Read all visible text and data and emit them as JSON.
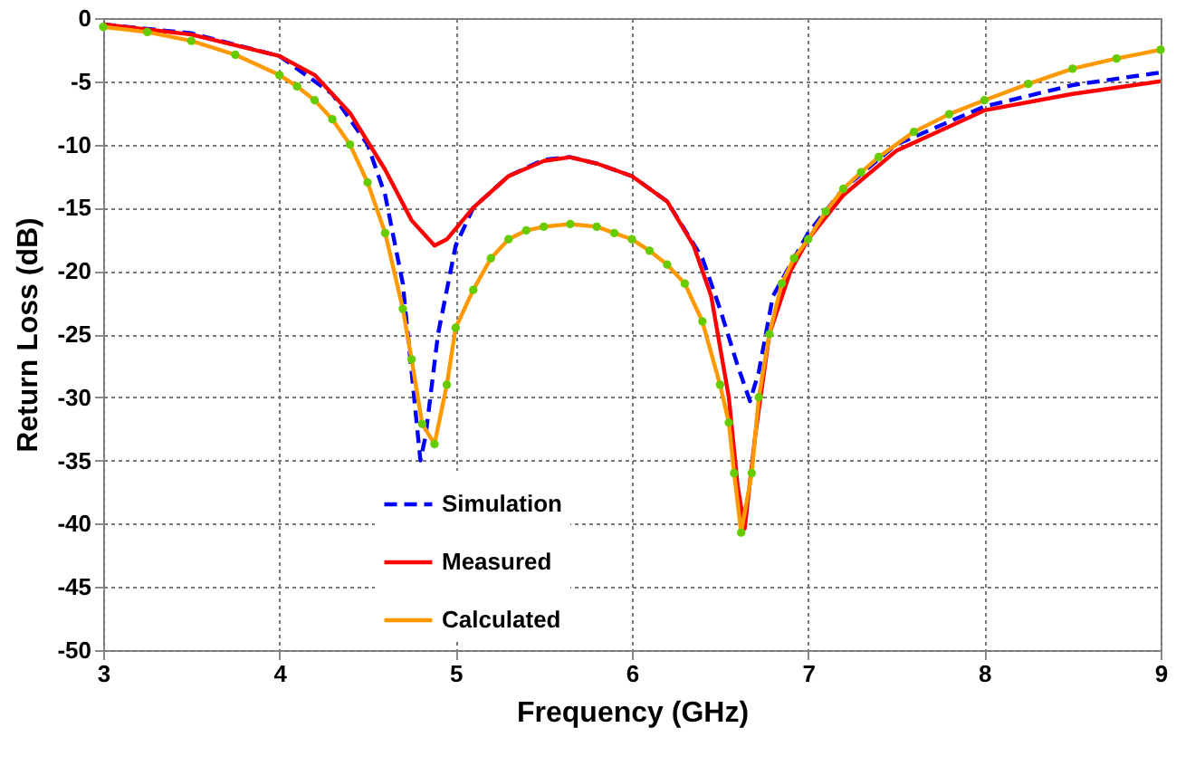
{
  "chart_data": {
    "type": "line",
    "xlabel": "Frequency (GHz)",
    "ylabel": "Return Loss (dB)",
    "xlim": [
      3,
      9
    ],
    "xticks": [
      3,
      4,
      5,
      6,
      7,
      8,
      9
    ],
    "ylim": [
      -50,
      0
    ],
    "yticks": [
      -50,
      -45,
      -40,
      -35,
      -30,
      -25,
      -20,
      -15,
      -10,
      -5,
      0
    ],
    "grid": true,
    "legend": "bottom",
    "series": [
      {
        "name": "Simulation",
        "color": "#0000ff",
        "line_style": "dashed",
        "x": [
          3,
          3.5,
          4,
          4.3,
          4.5,
          4.6,
          4.7,
          4.75,
          4.8,
          4.83,
          4.9,
          5,
          5.1,
          5.3,
          5.5,
          5.65,
          5.8,
          6,
          6.2,
          6.4,
          6.5,
          6.6,
          6.67,
          6.72,
          6.8,
          7,
          7.2,
          7.5,
          8,
          8.5,
          9
        ],
        "values": [
          -0.5,
          -1.2,
          -3,
          -6,
          -10,
          -14,
          -21,
          -28,
          -35,
          -33,
          -25,
          -18,
          -15,
          -12.5,
          -11.2,
          -11,
          -11.5,
          -12.5,
          -14.5,
          -19,
          -23,
          -27.5,
          -30.3,
          -28,
          -22,
          -17,
          -13.5,
          -10,
          -7,
          -5.3,
          -4.3
        ]
      },
      {
        "name": "Measured",
        "color": "#ff0000",
        "line_style": "solid",
        "x": [
          3,
          3.5,
          4,
          4.2,
          4.4,
          4.6,
          4.75,
          4.88,
          4.95,
          5.1,
          5.3,
          5.5,
          5.65,
          5.8,
          6,
          6.2,
          6.35,
          6.45,
          6.55,
          6.6,
          6.64,
          6.7,
          6.78,
          6.9,
          7,
          7.2,
          7.5,
          8,
          8.5,
          9
        ],
        "values": [
          -0.5,
          -1.3,
          -3,
          -4.5,
          -7.5,
          -12,
          -16,
          -18,
          -17.5,
          -15,
          -12.5,
          -11.3,
          -11,
          -11.5,
          -12.5,
          -14.5,
          -18,
          -22,
          -30,
          -37,
          -40.4,
          -33,
          -25,
          -20,
          -17.5,
          -14,
          -10.5,
          -7.3,
          -6,
          -5
        ]
      },
      {
        "name": "Calculated",
        "color": "#ff9900",
        "line_style": "solid",
        "marker": "circle",
        "x": [
          3,
          3.25,
          3.5,
          3.75,
          4,
          4.1,
          4.2,
          4.3,
          4.4,
          4.5,
          4.6,
          4.7,
          4.75,
          4.81,
          4.88,
          4.95,
          5,
          5.1,
          5.2,
          5.3,
          5.4,
          5.5,
          5.65,
          5.8,
          5.9,
          6,
          6.1,
          6.2,
          6.3,
          6.4,
          6.5,
          6.55,
          6.58,
          6.62,
          6.68,
          6.72,
          6.78,
          6.85,
          6.92,
          7,
          7.1,
          7.2,
          7.3,
          7.4,
          7.6,
          7.8,
          8,
          8.25,
          8.5,
          8.75,
          9
        ],
        "values": [
          -0.7,
          -1.1,
          -1.8,
          -2.9,
          -4.5,
          -5.4,
          -6.5,
          -8,
          -10,
          -13,
          -17,
          -23,
          -27,
          -32.1,
          -33.7,
          -29,
          -24.5,
          -21.5,
          -19,
          -17.5,
          -16.8,
          -16.5,
          -16.3,
          -16.5,
          -17,
          -17.5,
          -18.4,
          -19.5,
          -21,
          -24,
          -29,
          -32,
          -36,
          -40.7,
          -36,
          -30,
          -25,
          -21,
          -19,
          -17.5,
          -15.3,
          -13.5,
          -12.2,
          -11,
          -9,
          -7.6,
          -6.5,
          -5.2,
          -4,
          -3.2,
          -2.5
        ]
      }
    ]
  }
}
